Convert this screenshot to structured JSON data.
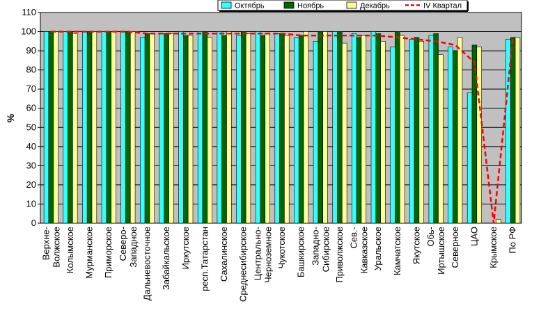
{
  "chart_data": {
    "type": "bar",
    "ylabel": "%",
    "ylim": [
      0,
      110
    ],
    "yticks": [
      0,
      10,
      20,
      30,
      40,
      50,
      60,
      70,
      80,
      90,
      100,
      110
    ],
    "grid": true,
    "legend_position": "top-right",
    "categories": [
      "Верхне-Волжское",
      "Колымское",
      "Мурманское",
      "Приморское",
      "Северо-Западное",
      "Дальневосточное",
      "Забайкальское",
      "Иркутское",
      "респ.Татарстан",
      "Сахалинское",
      "Среднесибирское",
      "Центрально-Черноземное",
      "Чукотское",
      "Башкирское",
      "Западно-Сибирское",
      "Приволжское",
      "Сев.-Кавказское",
      "Уральское",
      "Камчатское",
      "Якутское",
      "Обь-Иртышское",
      "Северное",
      "ЦАО",
      "Крымское",
      "По РФ"
    ],
    "series": [
      {
        "name": "Октябрь",
        "color": "#33ffff",
        "values": [
          100,
          100,
          100,
          100,
          100,
          97,
          99,
          100,
          100,
          100,
          98,
          100,
          99,
          97,
          95,
          100,
          99,
          100,
          92,
          96,
          98,
          92,
          68,
          0,
          96
        ]
      },
      {
        "name": "Ноябрь",
        "color": "#006600",
        "values": [
          100,
          100,
          100,
          100,
          100,
          99,
          99,
          98,
          100,
          98,
          100,
          98,
          99,
          98,
          100,
          100,
          97,
          99,
          100,
          97,
          99,
          90,
          93,
          0,
          97
        ]
      },
      {
        "name": "Декабрь",
        "color": "#ffff99",
        "values": [
          100,
          99,
          100,
          100,
          100,
          99,
          99,
          98,
          97,
          100,
          99,
          99,
          98,
          100,
          100,
          94,
          98,
          95,
          98,
          95,
          88,
          97,
          92,
          2,
          97
        ]
      }
    ],
    "line_series": {
      "name": "IV Квартал",
      "color": "#ff0000",
      "values": [
        100,
        100,
        100,
        100,
        100,
        99,
        99,
        99,
        99,
        99,
        99,
        99,
        99,
        98,
        98,
        98,
        98,
        98,
        97,
        96,
        95,
        93,
        84,
        0,
        97
      ]
    }
  }
}
